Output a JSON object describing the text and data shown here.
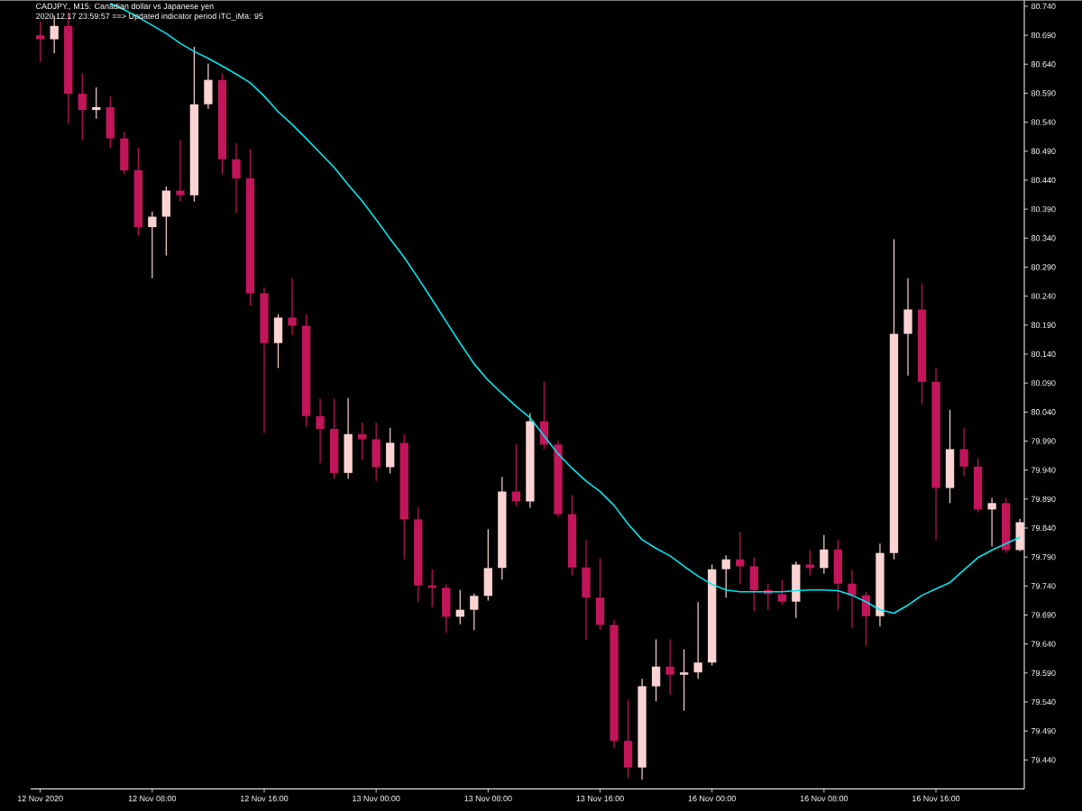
{
  "chart_data": {
    "type": "candlestick",
    "title": "CADJPY., M15:  Canadian dollar vs Japanese yen",
    "subtitle": "2020.12.17 23:59:57 ==>  Updated indicator period iTC_iMa: 95",
    "categories": [
      "12 Nov 2020",
      null,
      null,
      null,
      null,
      null,
      null,
      null,
      "12 Nov 08:00",
      null,
      null,
      null,
      null,
      null,
      null,
      null,
      "12 Nov 16:00",
      null,
      null,
      null,
      null,
      null,
      null,
      null,
      "13 Nov 00:00",
      null,
      null,
      null,
      null,
      null,
      null,
      null,
      "13 Nov 08:00",
      null,
      null,
      null,
      null,
      null,
      null,
      null,
      "13 Nov 16:00",
      null,
      null,
      null,
      null,
      null,
      null,
      null,
      "16 Nov 00:00",
      null,
      null,
      null,
      null,
      null,
      null,
      null,
      "16 Nov 08:00",
      null,
      null,
      null,
      null,
      null,
      null,
      null,
      "16 Nov 16:00",
      null,
      null,
      null,
      null,
      null,
      null
    ],
    "ohlc": [
      [
        80.69,
        80.714,
        80.644,
        80.683
      ],
      [
        80.683,
        80.724,
        80.659,
        80.706
      ],
      [
        80.706,
        80.729,
        80.538,
        80.589
      ],
      [
        80.589,
        80.625,
        80.509,
        80.561
      ],
      [
        80.561,
        80.6,
        80.546,
        80.566
      ],
      [
        80.566,
        80.585,
        80.496,
        80.512
      ],
      [
        80.512,
        80.523,
        80.45,
        80.457
      ],
      [
        80.457,
        80.496,
        80.345,
        80.359
      ],
      [
        80.359,
        80.386,
        80.271,
        80.377
      ],
      [
        80.377,
        80.429,
        80.31,
        80.422
      ],
      [
        80.422,
        80.509,
        80.403,
        80.414
      ],
      [
        80.414,
        80.67,
        80.403,
        80.571
      ],
      [
        80.571,
        80.641,
        80.563,
        80.613
      ],
      [
        80.613,
        80.624,
        80.45,
        80.476
      ],
      [
        80.476,
        80.504,
        80.384,
        80.443
      ],
      [
        80.443,
        80.493,
        80.224,
        80.245
      ],
      [
        80.245,
        80.255,
        80.004,
        80.159
      ],
      [
        80.159,
        80.209,
        80.116,
        80.203
      ],
      [
        80.203,
        80.271,
        80.173,
        80.189
      ],
      [
        80.189,
        80.209,
        80.015,
        80.033
      ],
      [
        80.033,
        80.063,
        79.952,
        80.011
      ],
      [
        80.011,
        80.063,
        79.925,
        79.935
      ],
      [
        79.935,
        80.064,
        79.925,
        80.002
      ],
      [
        80.002,
        80.022,
        79.957,
        79.993
      ],
      [
        79.993,
        80.022,
        79.921,
        79.945
      ],
      [
        79.945,
        80.013,
        79.934,
        79.987
      ],
      [
        79.987,
        80.002,
        79.786,
        79.855
      ],
      [
        79.855,
        79.876,
        79.712,
        79.741
      ],
      [
        79.741,
        79.769,
        79.704,
        79.737
      ],
      [
        79.737,
        79.743,
        79.659,
        79.687
      ],
      [
        79.687,
        79.733,
        79.674,
        79.699
      ],
      [
        79.699,
        79.727,
        79.664,
        79.723
      ],
      [
        79.723,
        79.838,
        79.715,
        79.771
      ],
      [
        79.771,
        79.928,
        79.751,
        79.903
      ],
      [
        79.903,
        79.984,
        79.878,
        79.886
      ],
      [
        79.886,
        80.038,
        79.875,
        80.024
      ],
      [
        80.024,
        80.092,
        79.976,
        79.984
      ],
      [
        79.984,
        79.991,
        79.859,
        79.864
      ],
      [
        79.864,
        79.897,
        79.758,
        79.772
      ],
      [
        79.772,
        79.819,
        79.647,
        79.72
      ],
      [
        79.72,
        79.788,
        79.665,
        79.673
      ],
      [
        79.673,
        79.681,
        79.46,
        79.473
      ],
      [
        79.473,
        79.544,
        79.409,
        79.427
      ],
      [
        79.427,
        79.58,
        79.406,
        79.567
      ],
      [
        79.567,
        79.648,
        79.541,
        79.601
      ],
      [
        79.601,
        79.648,
        79.553,
        79.587
      ],
      [
        79.587,
        79.631,
        79.525,
        79.591
      ],
      [
        79.591,
        79.712,
        79.58,
        79.608
      ],
      [
        79.608,
        79.777,
        79.603,
        79.769
      ],
      [
        79.769,
        79.793,
        79.72,
        79.786
      ],
      [
        79.786,
        79.833,
        79.743,
        79.774
      ],
      [
        79.774,
        79.789,
        79.696,
        79.733
      ],
      [
        79.733,
        79.744,
        79.699,
        79.726
      ],
      [
        79.726,
        79.751,
        79.707,
        79.713
      ],
      [
        79.713,
        79.782,
        79.685,
        79.777
      ],
      [
        79.777,
        79.802,
        79.758,
        79.771
      ],
      [
        79.771,
        79.828,
        79.761,
        79.803
      ],
      [
        79.803,
        79.82,
        79.699,
        79.744
      ],
      [
        79.744,
        79.768,
        79.668,
        79.724
      ],
      [
        79.724,
        79.73,
        79.637,
        79.688
      ],
      [
        79.688,
        79.813,
        79.67,
        79.797
      ],
      [
        79.797,
        80.338,
        79.786,
        80.175
      ],
      [
        80.175,
        80.271,
        80.103,
        80.217
      ],
      [
        80.217,
        80.262,
        80.053,
        80.092
      ],
      [
        80.092,
        80.116,
        79.819,
        79.909
      ],
      [
        79.909,
        80.044,
        79.883,
        79.976
      ],
      [
        79.976,
        80.013,
        79.929,
        79.946
      ],
      [
        79.946,
        79.96,
        79.867,
        79.872
      ],
      [
        79.872,
        79.892,
        79.808,
        79.883
      ],
      [
        79.883,
        79.892,
        79.797,
        79.802
      ],
      [
        79.802,
        79.856,
        79.8,
        79.85
      ]
    ],
    "colors": [
      "#c3155a",
      "#fcd3d3",
      "#c3155a",
      "#c3155a",
      "#fcd3d3",
      "#c3155a",
      "#c3155a",
      "#c3155a",
      "#fcd3d3",
      "#fcd3d3",
      "#c3155a",
      "#fcd3d3",
      "#fcd3d3",
      "#c3155a",
      "#c3155a",
      "#c3155a",
      "#c3155a",
      "#fcd3d3",
      "#c3155a",
      "#c3155a",
      "#c3155a",
      "#c3155a",
      "#fcd3d3",
      "#c3155a",
      "#c3155a",
      "#fcd3d3",
      "#c3155a",
      "#c3155a",
      "#c3155a",
      "#c3155a",
      "#fcd3d3",
      "#fcd3d3",
      "#fcd3d3",
      "#fcd3d3",
      "#c3155a",
      "#fcd3d3",
      "#c3155a",
      "#c3155a",
      "#c3155a",
      "#c3155a",
      "#c3155a",
      "#c3155a",
      "#c3155a",
      "#fcd3d3",
      "#fcd3d3",
      "#c3155a",
      "#fcd3d3",
      "#fcd3d3",
      "#fcd3d3",
      "#fcd3d3",
      "#c3155a",
      "#c3155a",
      "#c3155a",
      "#c3155a",
      "#fcd3d3",
      "#c3155a",
      "#fcd3d3",
      "#c3155a",
      "#c3155a",
      "#c3155a",
      "#fcd3d3",
      "#fcd3d3",
      "#fcd3d3",
      "#c3155a",
      "#c3155a",
      "#fcd3d3",
      "#c3155a",
      "#c3155a",
      "#fcd3d3",
      "#c3155a",
      "#fcd3d3"
    ],
    "series": [
      {
        "type": "line",
        "color": "#00e8f0",
        "values": [
          null,
          null,
          null,
          null,
          null,
          80.745,
          80.734,
          80.721,
          80.707,
          80.693,
          80.676,
          80.662,
          80.65,
          80.637,
          80.623,
          80.608,
          80.585,
          80.558,
          80.536,
          80.512,
          80.487,
          80.462,
          80.432,
          80.404,
          80.372,
          80.339,
          80.307,
          80.271,
          80.234,
          80.196,
          80.159,
          80.123,
          80.095,
          80.072,
          80.05,
          80.03,
          79.999,
          79.968,
          79.943,
          79.921,
          79.903,
          79.879,
          79.847,
          79.82,
          79.805,
          79.792,
          79.774,
          79.757,
          79.743,
          79.733,
          79.73,
          79.73,
          79.73,
          79.73,
          79.732,
          79.733,
          79.733,
          79.732,
          79.724,
          79.713,
          79.699,
          79.693,
          79.707,
          79.724,
          79.735,
          79.746,
          79.768,
          79.789,
          79.802,
          79.813,
          79.824
        ]
      }
    ],
    "ylim": [
      79.39,
      80.75
    ],
    "yticks": [
      {
        "value": 79.44,
        "label": "79.440"
      },
      {
        "value": 79.49,
        "label": "79.490"
      },
      {
        "value": 79.54,
        "label": "79.540"
      },
      {
        "value": 79.59,
        "label": "79.590"
      },
      {
        "value": 79.64,
        "label": "79.640"
      },
      {
        "value": 79.69,
        "label": "79.690"
      },
      {
        "value": 79.74,
        "label": "79.740"
      },
      {
        "value": 79.79,
        "label": "79.790"
      },
      {
        "value": 79.84,
        "label": "79.840"
      },
      {
        "value": 79.89,
        "label": "79.890"
      },
      {
        "value": 79.94,
        "label": "79.940"
      },
      {
        "value": 79.99,
        "label": "79.990"
      },
      {
        "value": 80.04,
        "label": "80.040"
      },
      {
        "value": 80.09,
        "label": "80.090"
      },
      {
        "value": 80.14,
        "label": "80.140"
      },
      {
        "value": 80.19,
        "label": "80.190"
      },
      {
        "value": 80.24,
        "label": "80.240"
      },
      {
        "value": 80.29,
        "label": "80.290"
      },
      {
        "value": 80.34,
        "label": "80.340"
      },
      {
        "value": 80.39,
        "label": "80.390"
      },
      {
        "value": 80.44,
        "label": "80.440"
      },
      {
        "value": 80.49,
        "label": "80.490"
      },
      {
        "value": 80.54,
        "label": "80.540"
      },
      {
        "value": 80.59,
        "label": "80.590"
      },
      {
        "value": 80.64,
        "label": "80.640"
      },
      {
        "value": 80.69,
        "label": "80.690"
      },
      {
        "value": 80.74,
        "label": "80.740"
      }
    ]
  }
}
